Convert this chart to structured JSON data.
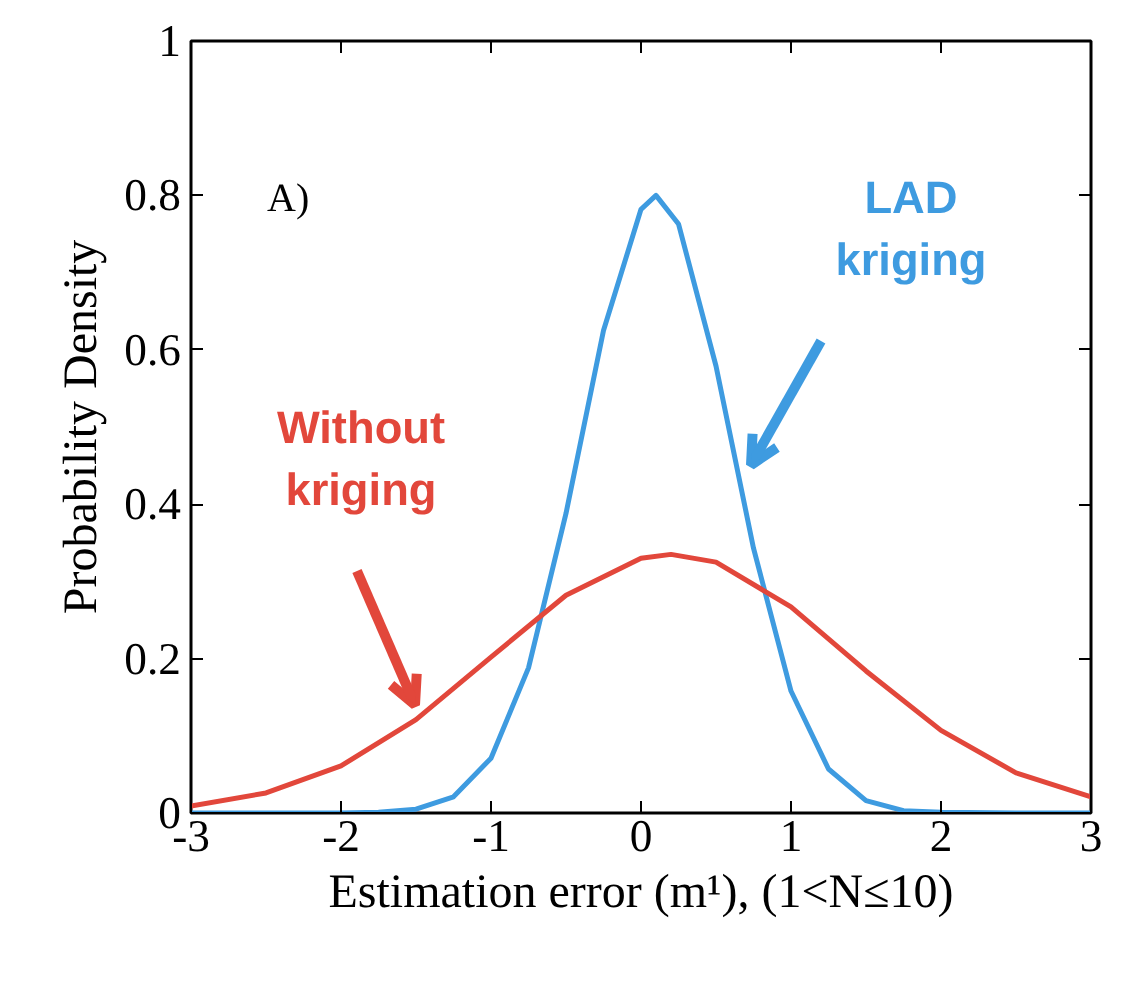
{
  "chart_data": {
    "type": "line",
    "xlabel": "Estimation error (m¹), (1<N≤10)",
    "ylabel": "Probability Density",
    "xlim": [
      -3,
      3
    ],
    "xticks": [
      -3,
      -2,
      -1,
      0,
      1,
      2,
      3
    ],
    "ylim": [
      0,
      1
    ],
    "yticks": [
      0,
      0.2,
      0.4,
      0.6,
      0.8,
      1
    ],
    "grid": false,
    "marker": "none",
    "line_style": "solid",
    "series": [
      {
        "color": "#3e9be0",
        "x": [
          -3,
          -2.5,
          -2,
          -1.75,
          -1.5,
          -1.25,
          -1,
          -0.75,
          -0.5,
          -0.25,
          0,
          0.1,
          0.25,
          0.5,
          0.75,
          1,
          1.25,
          1.5,
          1.75,
          2,
          2.5,
          3
        ],
        "values": [
          0,
          0,
          0,
          0.001,
          0.005,
          0.021,
          0.071,
          0.188,
          0.388,
          0.625,
          0.782,
          0.8,
          0.763,
          0.579,
          0.343,
          0.158,
          0.057,
          0.016,
          0.003,
          0.001,
          0,
          0
        ]
      },
      {
        "color": "#e2473b",
        "x": [
          -3,
          -2.5,
          -2,
          -1.5,
          -1,
          -0.5,
          0,
          0.2,
          0.5,
          1,
          1.5,
          2,
          2.5,
          3
        ],
        "values": [
          0.009,
          0.026,
          0.061,
          0.121,
          0.202,
          0.282,
          0.33,
          0.335,
          0.325,
          0.267,
          0.184,
          0.107,
          0.052,
          0.021
        ]
      }
    ],
    "annotations": [
      "A)",
      "LAD\nkriging",
      "Without\nkriging"
    ]
  }
}
